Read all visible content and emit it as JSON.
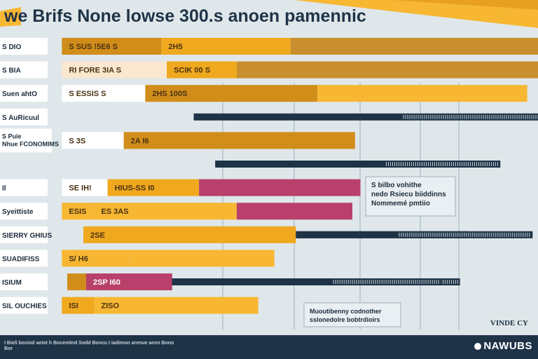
{
  "title": "we Brifs None lowse 300.s anoen pamennic",
  "colors": {
    "background": "#dfe7ea",
    "orange": "#f0a81e",
    "orange_dark": "#d18d1a",
    "orange_light": "#f7b733",
    "magenta": "#b8406a",
    "navy": "#1f3347",
    "label_box": "#ffffff",
    "pale_box": "#fbe7cf"
  },
  "chart_data": {
    "type": "bar",
    "title": "we Brifs None lowse 300.s anoen pamennic",
    "xlabel": "",
    "ylabel": "",
    "xlim": [
      0,
      100
    ],
    "grid": true,
    "legend": "none",
    "categories": [
      "S DIO",
      "S BIA",
      "Suen ahtO",
      "S AuRicuul",
      "S Puie Nhue FCONOMIMS",
      "Il",
      "Syeittiste",
      "SIERRY GHIUS",
      "SUADIFISS",
      "ISIUM",
      "SIL OUCHIES"
    ],
    "rows": [
      {
        "row": 0,
        "label": "S DIO",
        "bars": [
          {
            "tag": "S SUS !5E6 S",
            "start": 11.5,
            "end": 30,
            "color": "#d18d1a"
          },
          {
            "tag": "2H5",
            "start": 30,
            "end": 54,
            "color": "#f0a81e"
          },
          {
            "tag": "",
            "start": 54,
            "end": 100,
            "color": "#c98f2e"
          }
        ]
      },
      {
        "row": 1,
        "label": "S BIA",
        "bars": [
          {
            "tag": "RI FORE 3IA S",
            "start": 11.5,
            "end": 31,
            "color": "#fbe7cf"
          },
          {
            "tag": "SCIK 00 S",
            "start": 31,
            "end": 44,
            "color": "#f0a81e"
          },
          {
            "tag": "",
            "start": 44,
            "end": 100,
            "color": "#c98f2e"
          }
        ]
      },
      {
        "row": 2,
        "label": "Suen ahtO",
        "bars": [
          {
            "tag": "S ESSIS S",
            "start": 11.5,
            "end": 27,
            "color": "#ffffff"
          },
          {
            "tag": "2HS 100S",
            "start": 27,
            "end": 59,
            "color": "#d18d1a"
          },
          {
            "tag": "",
            "start": 59,
            "end": 98,
            "color": "#f7b733"
          }
        ]
      },
      {
        "row": 3,
        "label": "S AuRicuul",
        "bars": [
          {
            "tag": "",
            "start": 36,
            "end": 101,
            "color": "#1f3347"
          }
        ]
      },
      {
        "row": 4,
        "label": "S Puie Nhue FCONOMIMS",
        "bars": [
          {
            "tag": "S 3S",
            "start": 11.5,
            "end": 23,
            "color": "#ffffff"
          },
          {
            "tag": "2A I6",
            "start": 23,
            "end": 66,
            "color": "#d18d1a"
          }
        ]
      },
      {
        "row": 5,
        "label": "",
        "bars": [
          {
            "tag": "",
            "start": 40,
            "end": 93,
            "color": "#1f3347"
          }
        ]
      },
      {
        "row": 6,
        "label": "Il",
        "bars": [
          {
            "tag": "SE IH!",
            "start": 11.5,
            "end": 20,
            "color": "#ffffff"
          },
          {
            "tag": "HIUS-SS I0",
            "start": 20,
            "end": 37,
            "color": "#f0a81e"
          },
          {
            "tag": "",
            "start": 37,
            "end": 67,
            "color": "#b8406a"
          }
        ]
      },
      {
        "row": 7,
        "label": "Syeittiste",
        "bars": [
          {
            "tag": "ESIS",
            "start": 11.5,
            "end": 17.5,
            "color": "#f7b733"
          },
          {
            "tag": "ES 3AS",
            "start": 17.5,
            "end": 44,
            "color": "#f7b733"
          },
          {
            "tag": "",
            "start": 44,
            "end": 65.5,
            "color": "#b8406a"
          }
        ]
      },
      {
        "row": 8,
        "label": "SIERRY GHIUS",
        "bars": [
          {
            "tag": "",
            "start": 15.5,
            "end": 99,
            "color": "#1f3347"
          },
          {
            "tag": "2SE",
            "start": 15.5,
            "end": 55,
            "color": "#f0a81e"
          },
          {
            "tag": "",
            "start": 55,
            "end": 87,
            "color": "#1f3347"
          }
        ]
      },
      {
        "row": 9,
        "label": "SUADIFISS",
        "bars": [
          {
            "tag": "S/ H6",
            "start": 11.5,
            "end": 24,
            "color": "#f7b733"
          },
          {
            "tag": "",
            "start": 24,
            "end": 51,
            "color": "#f7b733"
          }
        ]
      },
      {
        "row": 10,
        "label": "ISIUM",
        "bars": [
          {
            "tag": "",
            "start": 20,
            "end": 85.5,
            "color": "#1f3347"
          },
          {
            "tag": "",
            "start": 12.5,
            "end": 16,
            "color": "#d18d1a"
          },
          {
            "tag": "2SP I60",
            "start": 16,
            "end": 32,
            "color": "#b8406a"
          },
          {
            "tag": "",
            "start": 32,
            "end": 82,
            "color": "#1f3347"
          }
        ]
      },
      {
        "row": 11,
        "label": "SIL OUCHIES",
        "bars": [
          {
            "tag": "ISI",
            "start": 11.5,
            "end": 17.5,
            "color": "#f0a81e"
          },
          {
            "tag": "ZISO",
            "start": 17.5,
            "end": 48,
            "color": "#f7b733"
          }
        ]
      }
    ],
    "annotations": [
      "S bilbo vohithe nedo Rsiecu biiddinns Nommemé pmtiio",
      "Muoutibenny codnother sslonedolre bobtrdioirs"
    ]
  },
  "corner_label": "VINDE CY",
  "footer": {
    "source": "I Bieli bosiod aeiot h Bocenitnd Sndd Bovcu I iadimon arenue acen Bono Bor",
    "logo": "NAWUBS"
  }
}
